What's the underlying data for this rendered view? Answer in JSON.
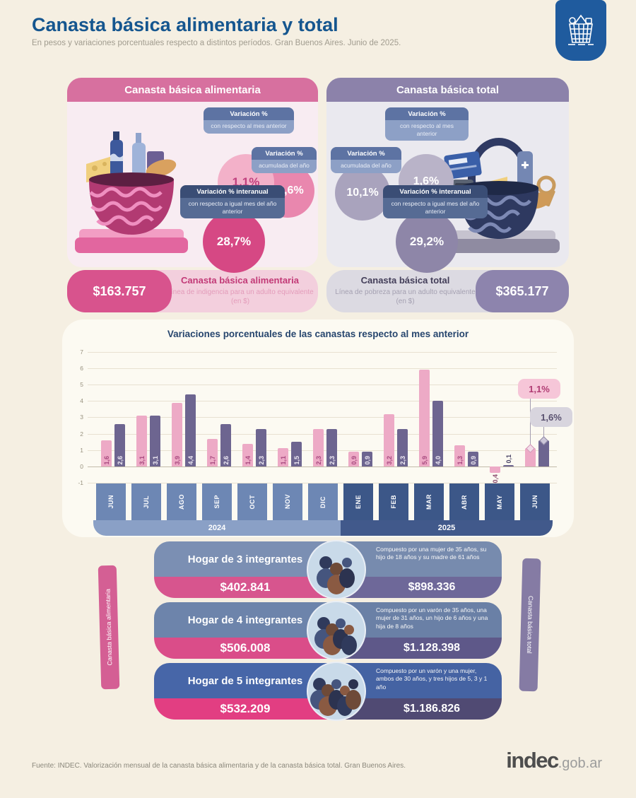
{
  "page": {
    "title": "Canasta básica alimentaria y total",
    "subtitle": "En pesos y variaciones porcentuales respecto a distintos períodos. Gran Buenos Aires. Junio de 2025."
  },
  "icons": {
    "logo": "shopping-basket-icon",
    "baskets": [
      "food-basket-illustration",
      "total-basket-illustration"
    ],
    "avatars": "household-people-icon"
  },
  "colors": {
    "accent_pink": "#d64884",
    "accent_purple": "#8c82aa",
    "title_blue": "#15568f",
    "bar_pink": "#edaac6",
    "bar_purple": "#6d6590"
  },
  "panels": {
    "alimentaria": {
      "header": "Canasta básica alimentaria",
      "bubbles": [
        {
          "label_title": "Variación %",
          "label_sub": "con respecto al mes anterior",
          "value": "1,1%"
        },
        {
          "label_title": "Variación %",
          "label_sub": "acumulada del año",
          "value": "12,6%"
        },
        {
          "label_title": "Variación % interanual",
          "label_sub": "con respecto a igual mes del año anterior",
          "value": "28,7%"
        }
      ],
      "amount": "$163.757",
      "footer_title": "Canasta básica alimentaria",
      "footer_sub": "Línea de indigencia para un adulto equivalente (en $)"
    },
    "total": {
      "header": "Canasta básica total",
      "bubbles": [
        {
          "label_title": "Variación %",
          "label_sub": "con respecto al mes anterior",
          "value": "1,6%"
        },
        {
          "label_title": "Variación %",
          "label_sub": "acumulada del año",
          "value": "10,1%"
        },
        {
          "label_title": "Variación % interanual",
          "label_sub": "con respecto a igual mes del año anterior",
          "value": "29,2%"
        }
      ],
      "amount": "$365.177",
      "footer_title": "Canasta básica total",
      "footer_sub": "Línea de pobreza para un adulto equivalente (en $)"
    }
  },
  "chart_data": {
    "type": "bar",
    "title": "Variaciones porcentuales de las canastas respecto al mes anterior",
    "categories": [
      "JUN",
      "JUL",
      "AGO",
      "SEP",
      "OCT",
      "NOV",
      "DIC",
      "ENE",
      "FEB",
      "MAR",
      "ABR",
      "MAY",
      "JUN"
    ],
    "year_groups": [
      {
        "label": "2024",
        "months": 7
      },
      {
        "label": "2025",
        "months": 6
      }
    ],
    "series": [
      {
        "name": "Canasta básica alimentaria",
        "color": "#edaac6",
        "label_color": "#a84a7f",
        "values": [
          1.6,
          3.1,
          3.9,
          1.7,
          1.4,
          1.1,
          2.3,
          0.9,
          3.2,
          5.9,
          1.3,
          -0.4,
          1.1
        ]
      },
      {
        "name": "Canasta básica total",
        "color": "#6d6590",
        "label_color": "#efeaf4",
        "values": [
          2.6,
          3.1,
          4.4,
          2.6,
          2.3,
          1.5,
          2.3,
          0.9,
          2.3,
          4.0,
          0.9,
          0.1,
          1.6
        ]
      }
    ],
    "ylim": [
      -1,
      7
    ],
    "yticks": [
      7,
      6,
      5,
      4,
      3,
      2,
      1,
      0,
      -1
    ],
    "grid": true,
    "legend": "none",
    "callouts": [
      {
        "text": "1,1%",
        "series": "Canasta básica alimentaria"
      },
      {
        "text": "1,6%",
        "series": "Canasta básica total"
      }
    ]
  },
  "households": {
    "left_ribbon": "Canasta básica alimentaria",
    "right_ribbon": "Canasta básica total",
    "rows": [
      {
        "label": "Hogar de 3 integrantes",
        "cba": "$402.841",
        "desc": "Compuesto por una mujer de 35 años, su hijo de 18 años y su madre de 61 años",
        "cbt": "$898.336",
        "members": 3
      },
      {
        "label": "Hogar de 4 integrantes",
        "cba": "$506.008",
        "desc": "Compuesto por un varón de 35 años, una mujer de 31 años, un hijo de 6 años y una hija de 8 años",
        "cbt": "$1.128.398",
        "members": 4
      },
      {
        "label": "Hogar de 5 integrantes",
        "cba": "$532.209",
        "desc": "Compuesto por un varón y una mujer, ambos de 30 años, y tres hijos de 5, 3 y 1 año",
        "cbt": "$1.186.826",
        "members": 5
      }
    ]
  },
  "footer": {
    "source": "Fuente: INDEC. Valorización mensual de la canasta básica alimentaria y de la canasta básica total. Gran Buenos Aires.",
    "logo_main": "indec",
    "logo_suffix": ".gob.ar"
  }
}
